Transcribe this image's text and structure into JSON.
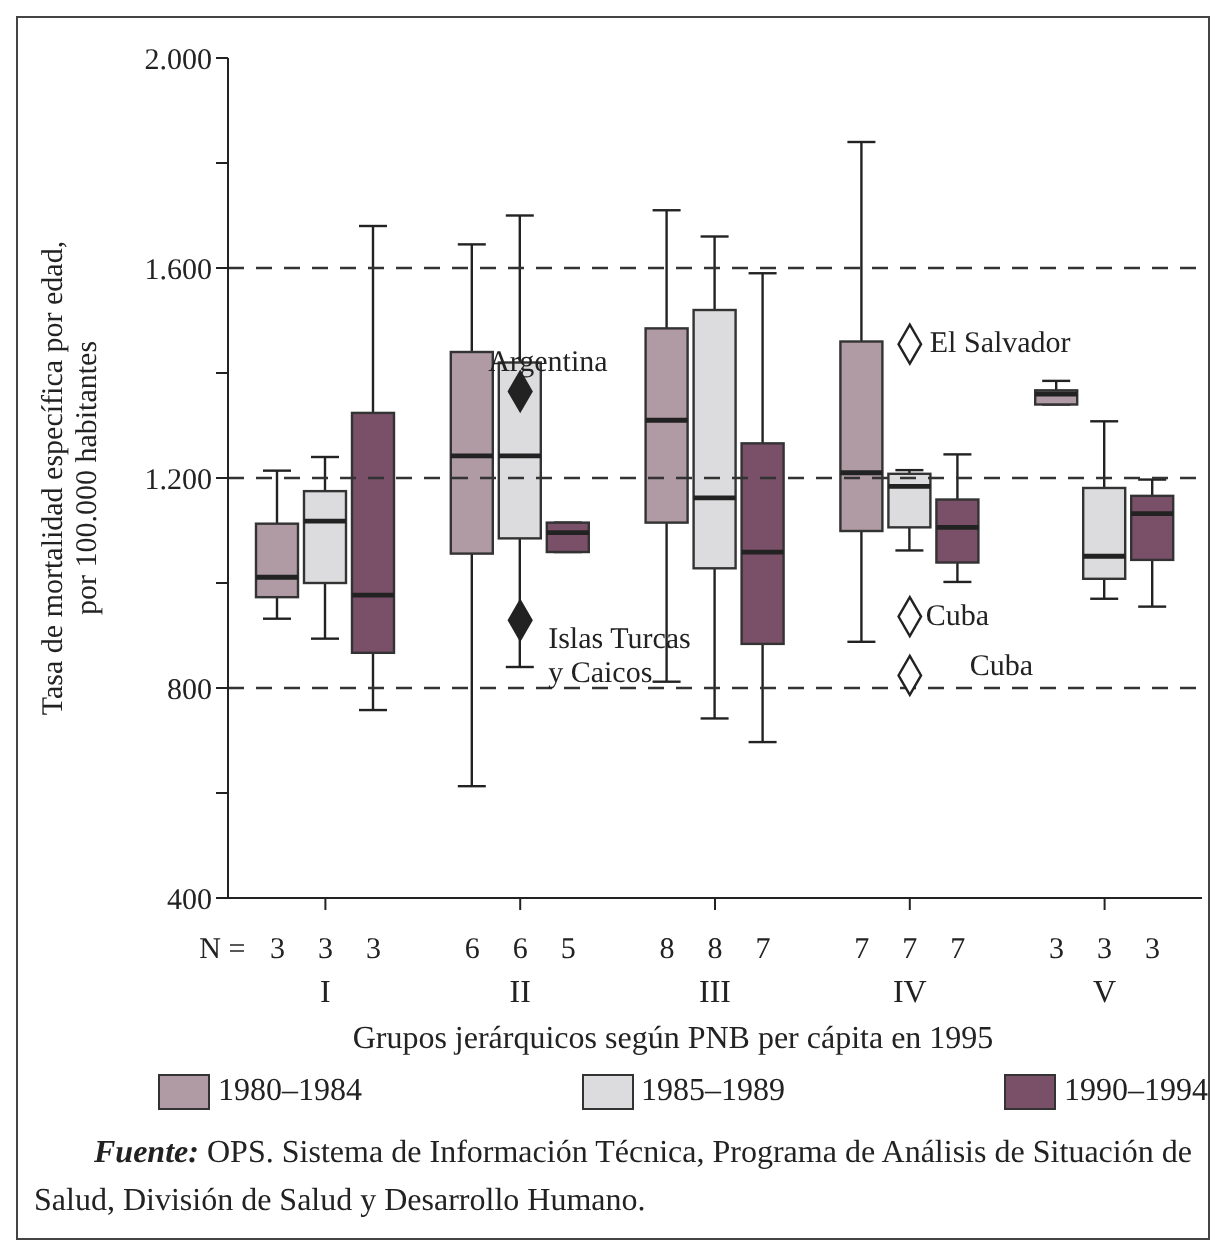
{
  "chart_data": {
    "type": "box",
    "ylabel": "Tasa de mortalidad específica  por edad, por 100.000 habitantes",
    "xlabel": "Grupos jerárquicos según PNB per cápita en 1995",
    "categories": [
      "I",
      "II",
      "III",
      "IV",
      "V"
    ],
    "ylim": [
      400,
      2000
    ],
    "yticks": [
      {
        "value": 400,
        "label": "400"
      },
      {
        "value": 600,
        "label": null
      },
      {
        "value": 800,
        "label": "800"
      },
      {
        "value": 1000,
        "label": null
      },
      {
        "value": 1200,
        "label": "1.200"
      },
      {
        "value": 1400,
        "label": null
      },
      {
        "value": 1600,
        "label": "1.600"
      },
      {
        "value": 1800,
        "label": null
      },
      {
        "value": 2000,
        "label": "2.000"
      }
    ],
    "legend": "bottom",
    "grid": false,
    "ref_lines": [
      {
        "axis": "y",
        "value": 800,
        "line_style": "dashed"
      },
      {
        "axis": "y",
        "value": 1200,
        "line_style": "dashed"
      },
      {
        "axis": "y",
        "value": 1600,
        "line_style": "dashed"
      }
    ],
    "series": [
      {
        "name": "1980–1984",
        "color": "#b09aa3",
        "boxes": [
          {
            "low": 932,
            "q1": 973,
            "median": 1011,
            "q3": 1113,
            "high": 1214
          },
          {
            "low": 613,
            "q1": 1056,
            "median": 1242,
            "q3": 1440,
            "high": 1645
          },
          {
            "low": 812,
            "q1": 1115,
            "median": 1310,
            "q3": 1485,
            "high": 1710
          },
          {
            "low": 888,
            "q1": 1099,
            "median": 1210,
            "q3": 1460,
            "high": 1840
          },
          {
            "low": 1340,
            "q1": 1340,
            "median": 1360,
            "q3": 1367,
            "high": 1385
          }
        ]
      },
      {
        "name": "1985–1989",
        "color": "#dcdcde",
        "boxes": [
          {
            "low": 894,
            "q1": 1000,
            "median": 1118,
            "q3": 1175,
            "high": 1240
          },
          {
            "low": 840,
            "q1": 1085,
            "median": 1242,
            "q3": 1420,
            "high": 1700
          },
          {
            "low": 742,
            "q1": 1028,
            "median": 1162,
            "q3": 1520,
            "high": 1660
          },
          {
            "low": 1062,
            "q1": 1106,
            "median": 1184,
            "q3": 1208,
            "high": 1215
          },
          {
            "low": 970,
            "q1": 1008,
            "median": 1051,
            "q3": 1181,
            "high": 1308
          }
        ]
      },
      {
        "name": "1990–1994",
        "color": "#7a4f68",
        "boxes": [
          {
            "low": 758,
            "q1": 867,
            "median": 977,
            "q3": 1324,
            "high": 1680
          },
          {
            "low": 1059,
            "q1": 1059,
            "median": 1096,
            "q3": 1115,
            "high": 1115
          },
          {
            "low": 697,
            "q1": 884,
            "median": 1059,
            "q3": 1266,
            "high": 1590
          },
          {
            "low": 1002,
            "q1": 1039,
            "median": 1106,
            "q3": 1159,
            "high": 1245
          },
          {
            "low": 955,
            "q1": 1044,
            "median": 1132,
            "q3": 1166,
            "high": 1197
          }
        ]
      },
      {
        "type": "scatter",
        "marker": "diamond",
        "color": "#222222",
        "x": [
          "II",
          "II"
        ],
        "values": [
          1365,
          929
        ]
      },
      {
        "type": "scatter",
        "marker": "diamond",
        "color": "#ffffff",
        "x": [
          "IV",
          "IV",
          "IV"
        ],
        "values": [
          1455,
          936,
          824
        ]
      }
    ],
    "annotations": [
      {
        "text": "Argentina",
        "x": "II",
        "y": 1365
      },
      {
        "text": "Islas Turcas y Caicos",
        "x": "II",
        "y": 929
      },
      {
        "text": "El Salvador",
        "x": "IV",
        "y": 1455
      },
      {
        "text": "Cuba",
        "x": "IV",
        "y": 936
      },
      {
        "text": "Cuba",
        "x": "IV",
        "y": 824
      },
      "N =",
      "3",
      "3",
      "3",
      "6",
      "6",
      "5",
      "8",
      "8",
      "7",
      "7",
      "7",
      "7",
      "3",
      "3",
      "3",
      "Fuente: OPS. Sistema de Información Técnica, Programa de Análisis de Situación de Salud, División de Salud y Desarrollo Humano."
    ]
  }
}
